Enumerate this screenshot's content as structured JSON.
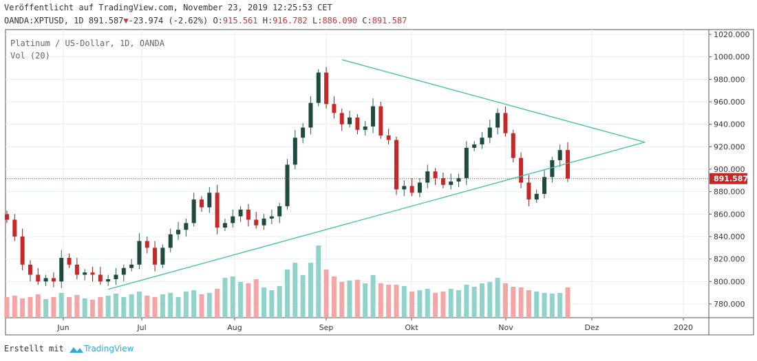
{
  "header": {
    "published": "Veröffentlicht auf TradingView.com, November 23, 2019 12:25:53 CET",
    "symbol": "OANDA:XPTUSD, 1D",
    "last": "891.587",
    "change": "-23.974 (-2.62%)",
    "o_label": "O:",
    "o": "915.561",
    "h_label": "H:",
    "h": "916.782",
    "l_label": "L:",
    "l": "886.090",
    "c_label": "C:",
    "c": "891.587"
  },
  "legend": {
    "title": "Platinum / US-Dollar, 1D, OANDA",
    "vol": "Vol (20)"
  },
  "footer": {
    "made_with": "Erstellt mit",
    "brand": "TradingView"
  },
  "colors": {
    "up": "#26a69a",
    "down": "#c62828",
    "vol_up": "#8fd3cb",
    "vol_down": "#f4a6a6",
    "trend": "#3fbfa0"
  },
  "chart_data": {
    "type": "candlestick",
    "title": "Platinum / US-Dollar, 1D, OANDA",
    "price_ticks": [
      "780.000",
      "800.000",
      "820.000",
      "840.000",
      "860.000",
      "880.000",
      "900.000",
      "920.000",
      "940.000",
      "960.000",
      "980.000",
      "1000.000",
      "1020.000"
    ],
    "ylim": [
      772,
      1025
    ],
    "time_ticks": [
      "Jun",
      "Jul",
      "Aug",
      "Sep",
      "Okt",
      "Nov",
      "Dez",
      "2020"
    ],
    "last_price": "891.587",
    "start_open": 860,
    "closes": [
      855,
      840,
      815,
      806,
      800,
      803,
      800,
      821,
      815,
      806,
      808,
      806,
      800,
      802,
      806,
      812,
      815,
      836,
      830,
      815,
      830,
      842,
      846,
      852,
      873,
      866,
      879,
      848,
      852,
      858,
      864,
      855,
      850,
      856,
      858,
      867,
      904,
      928,
      937,
      959,
      986,
      958,
      950,
      940,
      946,
      935,
      938,
      956,
      930,
      926,
      882,
      885,
      879,
      888,
      898,
      892,
      886,
      889,
      892,
      919,
      922,
      928,
      937,
      950,
      932,
      910,
      888,
      873,
      878,
      893,
      908,
      917,
      891.587
    ],
    "volumes": [
      30,
      32,
      28,
      30,
      34,
      27,
      30,
      36,
      30,
      33,
      28,
      26,
      30,
      32,
      35,
      30,
      34,
      38,
      32,
      30,
      34,
      36,
      30,
      38,
      40,
      34,
      36,
      42,
      58,
      60,
      52,
      50,
      56,
      44,
      40,
      46,
      70,
      80,
      62,
      80,
      105,
      70,
      60,
      52,
      54,
      55,
      50,
      62,
      50,
      48,
      48,
      46,
      38,
      40,
      42,
      36,
      38,
      42,
      40,
      48,
      45,
      50,
      52,
      58,
      50,
      45,
      44,
      40,
      38,
      36,
      35,
      36,
      44
    ],
    "trendlines": [
      {
        "name": "upper",
        "from": {
          "bar": 43,
          "price": 997.5
        },
        "to": {
          "bar": 82,
          "price": 924
        }
      },
      {
        "name": "lower",
        "from": {
          "bar": 13,
          "price": 793
        },
        "to": {
          "bar": 82,
          "price": 924
        }
      }
    ]
  }
}
